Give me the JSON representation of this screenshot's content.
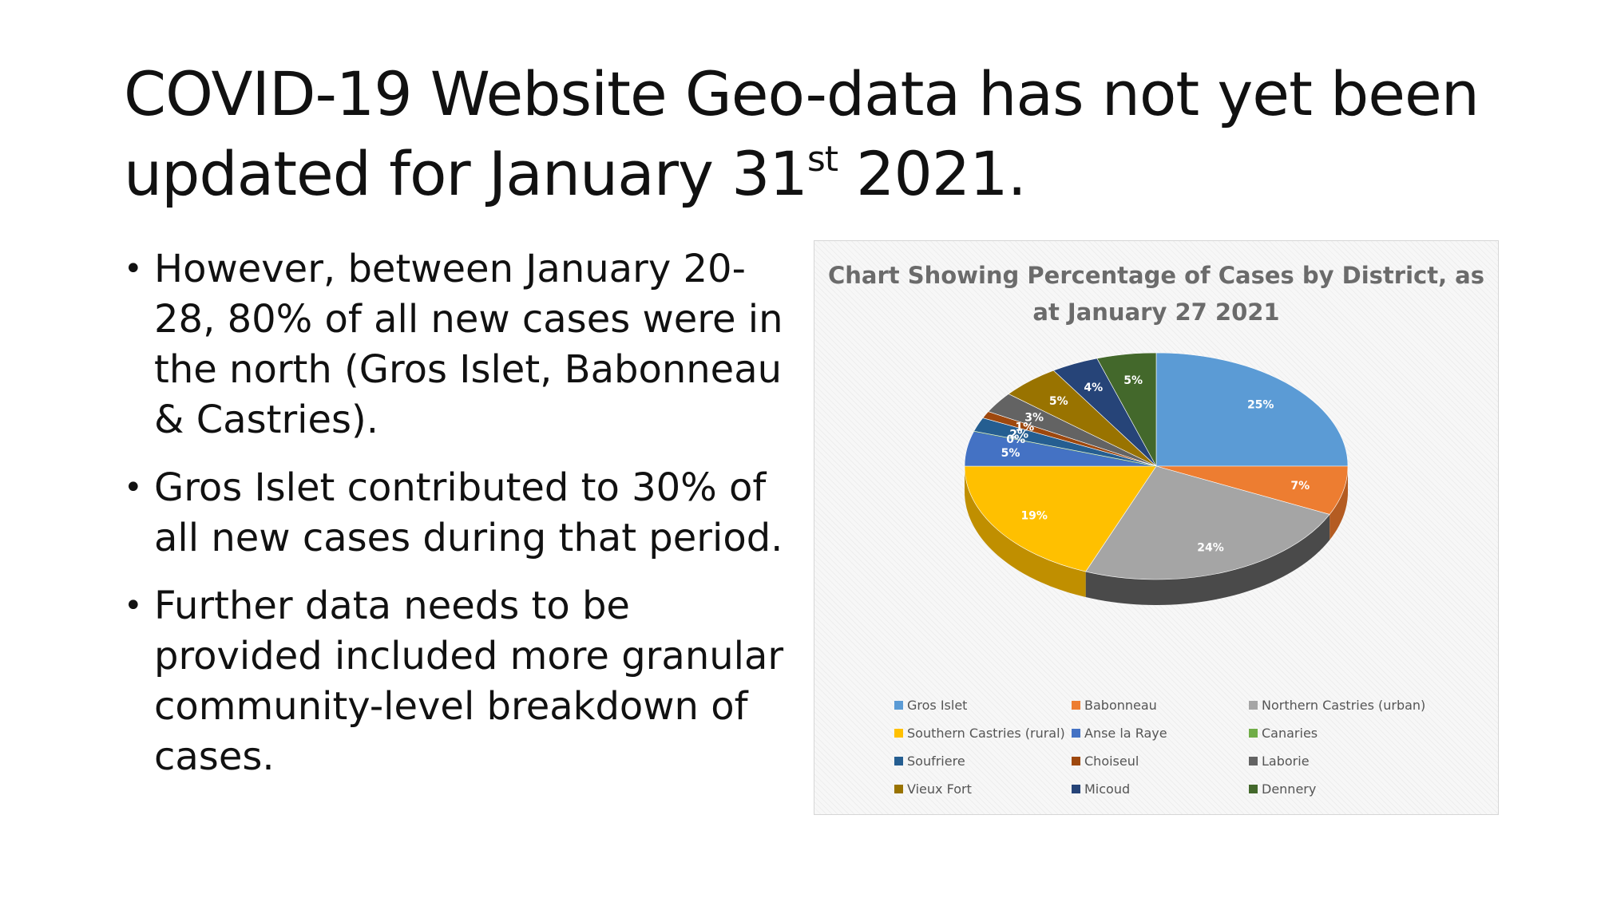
{
  "slide": {
    "title_main": "COVID-19 Website Geo-data has not yet been updated for January 31",
    "title_sup": "st",
    "title_end": " 2021.",
    "bullets": [
      "However, between January 20-28, 80% of all new cases were in the north (Gros Islet, Babonneau & Castries).",
      "Gros Islet contributed to 30% of all new cases during that period.",
      "Further data needs to be provided included more granular community-level breakdown of cases."
    ]
  },
  "chart_data": {
    "type": "pie",
    "title": "Chart Showing Percentage of Cases by District, as at January 27 2021",
    "legend_position": "bottom",
    "categories": [
      "Gros Islet",
      "Babonneau",
      "Northern Castries (urban)",
      "Southern Castries (rural)",
      "Anse la Raye",
      "Canaries",
      "Soufriere",
      "Choiseul",
      "Laborie",
      "Vieux Fort",
      "Micoud",
      "Dennery"
    ],
    "values": [
      25,
      7,
      24,
      19,
      5,
      0,
      2,
      1,
      3,
      5,
      4,
      5
    ],
    "labels": [
      "25%",
      "7%",
      "24%",
      "19%",
      "5%",
      "0%",
      "2%",
      "1%",
      "3%",
      "5%",
      "4%",
      "5%"
    ],
    "colors": [
      "#5b9bd5",
      "#ed7d31",
      "#a5a5a5",
      "#ffc000",
      "#4472c4",
      "#70ad47",
      "#255e91",
      "#9e480e",
      "#636363",
      "#997300",
      "#264478",
      "#43682b"
    ],
    "dark_colors": [
      "#3f73a2",
      "#b45c22",
      "#4a4a4a",
      "#c08f00",
      "#2f5597",
      "#4f7f30",
      "#173f63",
      "#6b2f08",
      "#444444",
      "#6b5000",
      "#18305a",
      "#2d481c"
    ]
  }
}
